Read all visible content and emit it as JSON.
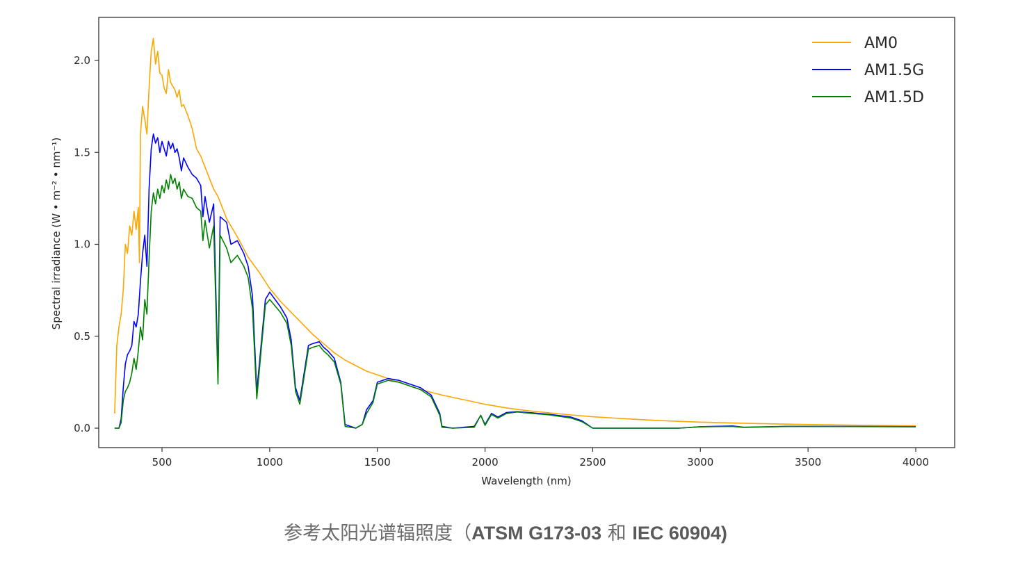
{
  "caption": {
    "prefix": "参考太阳光谱辐照度（",
    "std1": "ATSM G173-03",
    "joiner": " 和 ",
    "std2": "IEC 60904)"
  },
  "chart_data": {
    "type": "line",
    "title": "",
    "xlabel": "Wavelength (nm)",
    "ylabel": "Spectral irradiance (W • m⁻² • nm⁻¹)",
    "xlim": [
      0,
      4170
    ],
    "ylim": [
      -0.1,
      2.25
    ],
    "x_ticks": [
      500,
      1000,
      1500,
      2000,
      2500,
      3000,
      3500,
      4000
    ],
    "y_ticks": [
      0.0,
      0.5,
      1.0,
      1.5,
      2.0
    ],
    "x_tick_labels": [
      "500",
      "1000",
      "1500",
      "2000",
      "2500",
      "3000",
      "3500",
      "4000"
    ],
    "y_tick_labels": [
      "0.0",
      "0.5",
      "1.0",
      "1.5",
      "2.0"
    ],
    "grid": false,
    "legend_position": "upper right",
    "series": [
      {
        "name": "AM0",
        "color": "#ffa500",
        "points": [
          [
            280,
            0.08
          ],
          [
            290,
            0.45
          ],
          [
            300,
            0.55
          ],
          [
            310,
            0.62
          ],
          [
            320,
            0.75
          ],
          [
            330,
            1.0
          ],
          [
            340,
            0.95
          ],
          [
            350,
            1.1
          ],
          [
            360,
            1.05
          ],
          [
            370,
            1.18
          ],
          [
            380,
            1.08
          ],
          [
            390,
            1.2
          ],
          [
            395,
            0.9
          ],
          [
            400,
            1.6
          ],
          [
            410,
            1.75
          ],
          [
            420,
            1.68
          ],
          [
            430,
            1.6
          ],
          [
            440,
            1.85
          ],
          [
            450,
            2.05
          ],
          [
            460,
            2.12
          ],
          [
            470,
            1.98
          ],
          [
            480,
            2.05
          ],
          [
            490,
            1.93
          ],
          [
            500,
            1.92
          ],
          [
            510,
            1.85
          ],
          [
            520,
            1.82
          ],
          [
            530,
            1.95
          ],
          [
            540,
            1.88
          ],
          [
            550,
            1.86
          ],
          [
            560,
            1.84
          ],
          [
            570,
            1.8
          ],
          [
            580,
            1.84
          ],
          [
            590,
            1.75
          ],
          [
            600,
            1.76
          ],
          [
            620,
            1.7
          ],
          [
            640,
            1.63
          ],
          [
            660,
            1.52
          ],
          [
            680,
            1.48
          ],
          [
            700,
            1.42
          ],
          [
            720,
            1.36
          ],
          [
            740,
            1.3
          ],
          [
            760,
            1.26
          ],
          [
            780,
            1.2
          ],
          [
            800,
            1.14
          ],
          [
            850,
            1.04
          ],
          [
            900,
            0.93
          ],
          [
            950,
            0.85
          ],
          [
            1000,
            0.76
          ],
          [
            1050,
            0.69
          ],
          [
            1100,
            0.63
          ],
          [
            1150,
            0.57
          ],
          [
            1200,
            0.51
          ],
          [
            1250,
            0.46
          ],
          [
            1300,
            0.41
          ],
          [
            1350,
            0.37
          ],
          [
            1400,
            0.34
          ],
          [
            1450,
            0.31
          ],
          [
            1500,
            0.29
          ],
          [
            1550,
            0.27
          ],
          [
            1600,
            0.25
          ],
          [
            1650,
            0.23
          ],
          [
            1700,
            0.21
          ],
          [
            1800,
            0.18
          ],
          [
            1900,
            0.155
          ],
          [
            2000,
            0.13
          ],
          [
            2100,
            0.11
          ],
          [
            2200,
            0.095
          ],
          [
            2300,
            0.083
          ],
          [
            2400,
            0.072
          ],
          [
            2500,
            0.062
          ],
          [
            2600,
            0.055
          ],
          [
            2700,
            0.048
          ],
          [
            2800,
            0.042
          ],
          [
            2900,
            0.037
          ],
          [
            3000,
            0.033
          ],
          [
            3200,
            0.027
          ],
          [
            3400,
            0.022
          ],
          [
            3600,
            0.018
          ],
          [
            3800,
            0.015
          ],
          [
            4000,
            0.013
          ]
        ]
      },
      {
        "name": "AM1.5G",
        "color": "#0000ff",
        "points": [
          [
            280,
            0.0
          ],
          [
            300,
            0.0
          ],
          [
            310,
            0.05
          ],
          [
            320,
            0.22
          ],
          [
            330,
            0.35
          ],
          [
            340,
            0.4
          ],
          [
            350,
            0.42
          ],
          [
            360,
            0.45
          ],
          [
            370,
            0.58
          ],
          [
            380,
            0.55
          ],
          [
            390,
            0.62
          ],
          [
            400,
            0.8
          ],
          [
            410,
            0.95
          ],
          [
            420,
            1.05
          ],
          [
            430,
            0.88
          ],
          [
            440,
            1.3
          ],
          [
            450,
            1.52
          ],
          [
            460,
            1.6
          ],
          [
            470,
            1.55
          ],
          [
            480,
            1.58
          ],
          [
            490,
            1.5
          ],
          [
            500,
            1.56
          ],
          [
            510,
            1.52
          ],
          [
            520,
            1.48
          ],
          [
            530,
            1.56
          ],
          [
            540,
            1.52
          ],
          [
            550,
            1.55
          ],
          [
            560,
            1.5
          ],
          [
            570,
            1.52
          ],
          [
            580,
            1.47
          ],
          [
            590,
            1.4
          ],
          [
            600,
            1.47
          ],
          [
            620,
            1.42
          ],
          [
            640,
            1.38
          ],
          [
            660,
            1.36
          ],
          [
            680,
            1.32
          ],
          [
            690,
            1.15
          ],
          [
            700,
            1.26
          ],
          [
            720,
            1.12
          ],
          [
            740,
            1.22
          ],
          [
            760,
            0.28
          ],
          [
            770,
            1.15
          ],
          [
            800,
            1.12
          ],
          [
            820,
            1.0
          ],
          [
            850,
            1.02
          ],
          [
            880,
            0.95
          ],
          [
            900,
            0.88
          ],
          [
            920,
            0.72
          ],
          [
            940,
            0.2
          ],
          [
            960,
            0.45
          ],
          [
            980,
            0.7
          ],
          [
            1000,
            0.74
          ],
          [
            1050,
            0.66
          ],
          [
            1080,
            0.6
          ],
          [
            1100,
            0.48
          ],
          [
            1120,
            0.22
          ],
          [
            1140,
            0.15
          ],
          [
            1160,
            0.3
          ],
          [
            1180,
            0.45
          ],
          [
            1200,
            0.46
          ],
          [
            1230,
            0.47
          ],
          [
            1250,
            0.44
          ],
          [
            1270,
            0.42
          ],
          [
            1300,
            0.38
          ],
          [
            1330,
            0.25
          ],
          [
            1350,
            0.02
          ],
          [
            1400,
            0.0
          ],
          [
            1430,
            0.02
          ],
          [
            1450,
            0.1
          ],
          [
            1480,
            0.15
          ],
          [
            1500,
            0.25
          ],
          [
            1550,
            0.27
          ],
          [
            1600,
            0.26
          ],
          [
            1650,
            0.24
          ],
          [
            1700,
            0.22
          ],
          [
            1750,
            0.18
          ],
          [
            1790,
            0.08
          ],
          [
            1800,
            0.01
          ],
          [
            1850,
            0.0
          ],
          [
            1950,
            0.01
          ],
          [
            1980,
            0.07
          ],
          [
            2000,
            0.02
          ],
          [
            2030,
            0.08
          ],
          [
            2060,
            0.06
          ],
          [
            2100,
            0.085
          ],
          [
            2150,
            0.09
          ],
          [
            2200,
            0.085
          ],
          [
            2300,
            0.075
          ],
          [
            2400,
            0.06
          ],
          [
            2450,
            0.04
          ],
          [
            2500,
            0.0
          ],
          [
            2900,
            0.0
          ],
          [
            3000,
            0.008
          ],
          [
            3150,
            0.012
          ],
          [
            3200,
            0.005
          ],
          [
            3400,
            0.01
          ],
          [
            3600,
            0.01
          ],
          [
            4000,
            0.008
          ]
        ]
      },
      {
        "name": "AM1.5D",
        "color": "#008000",
        "points": [
          [
            280,
            0.0
          ],
          [
            300,
            0.0
          ],
          [
            310,
            0.03
          ],
          [
            320,
            0.15
          ],
          [
            330,
            0.2
          ],
          [
            340,
            0.22
          ],
          [
            350,
            0.25
          ],
          [
            360,
            0.3
          ],
          [
            370,
            0.38
          ],
          [
            380,
            0.32
          ],
          [
            390,
            0.42
          ],
          [
            400,
            0.55
          ],
          [
            410,
            0.48
          ],
          [
            420,
            0.7
          ],
          [
            430,
            0.62
          ],
          [
            440,
            0.92
          ],
          [
            450,
            1.18
          ],
          [
            460,
            1.28
          ],
          [
            470,
            1.22
          ],
          [
            480,
            1.3
          ],
          [
            490,
            1.25
          ],
          [
            500,
            1.32
          ],
          [
            510,
            1.28
          ],
          [
            520,
            1.35
          ],
          [
            530,
            1.3
          ],
          [
            540,
            1.38
          ],
          [
            550,
            1.33
          ],
          [
            560,
            1.36
          ],
          [
            570,
            1.3
          ],
          [
            580,
            1.34
          ],
          [
            590,
            1.25
          ],
          [
            600,
            1.3
          ],
          [
            620,
            1.26
          ],
          [
            640,
            1.25
          ],
          [
            660,
            1.2
          ],
          [
            680,
            1.18
          ],
          [
            690,
            1.02
          ],
          [
            700,
            1.13
          ],
          [
            720,
            0.98
          ],
          [
            740,
            1.1
          ],
          [
            760,
            0.24
          ],
          [
            770,
            1.05
          ],
          [
            800,
            0.98
          ],
          [
            820,
            0.9
          ],
          [
            850,
            0.94
          ],
          [
            880,
            0.88
          ],
          [
            900,
            0.82
          ],
          [
            920,
            0.65
          ],
          [
            940,
            0.16
          ],
          [
            960,
            0.42
          ],
          [
            980,
            0.67
          ],
          [
            1000,
            0.7
          ],
          [
            1050,
            0.63
          ],
          [
            1080,
            0.57
          ],
          [
            1100,
            0.45
          ],
          [
            1120,
            0.2
          ],
          [
            1140,
            0.13
          ],
          [
            1160,
            0.28
          ],
          [
            1180,
            0.43
          ],
          [
            1200,
            0.44
          ],
          [
            1230,
            0.45
          ],
          [
            1250,
            0.42
          ],
          [
            1270,
            0.4
          ],
          [
            1300,
            0.36
          ],
          [
            1330,
            0.24
          ],
          [
            1350,
            0.01
          ],
          [
            1400,
            0.0
          ],
          [
            1430,
            0.02
          ],
          [
            1450,
            0.08
          ],
          [
            1480,
            0.14
          ],
          [
            1500,
            0.24
          ],
          [
            1550,
            0.26
          ],
          [
            1600,
            0.25
          ],
          [
            1650,
            0.23
          ],
          [
            1700,
            0.21
          ],
          [
            1750,
            0.17
          ],
          [
            1790,
            0.07
          ],
          [
            1800,
            0.005
          ],
          [
            1850,
            0.0
          ],
          [
            1950,
            0.005
          ],
          [
            1980,
            0.07
          ],
          [
            2000,
            0.015
          ],
          [
            2030,
            0.075
          ],
          [
            2060,
            0.055
          ],
          [
            2100,
            0.08
          ],
          [
            2150,
            0.088
          ],
          [
            2200,
            0.082
          ],
          [
            2300,
            0.072
          ],
          [
            2400,
            0.055
          ],
          [
            2450,
            0.035
          ],
          [
            2500,
            0.0
          ],
          [
            2900,
            0.0
          ],
          [
            3000,
            0.007
          ],
          [
            3150,
            0.01
          ],
          [
            3200,
            0.004
          ],
          [
            3400,
            0.009
          ],
          [
            3600,
            0.009
          ],
          [
            4000,
            0.008
          ]
        ]
      }
    ]
  }
}
